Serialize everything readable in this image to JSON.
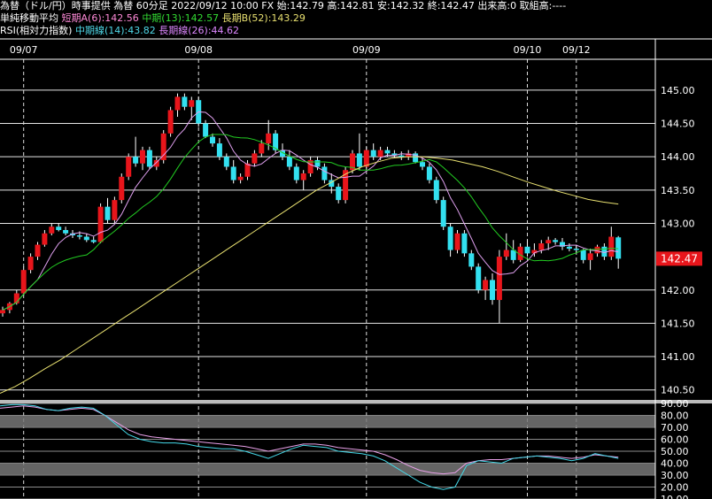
{
  "header": {
    "line1": "為替（ドル/円）時事提供 為替 60分足 2022/09/12 10:00 FX 始:142.79 高:142.81 安:142.32 終:142.47 出来高:0 取組高:----",
    "ma_title": "単純移動平均",
    "ma_short": "短期A(6):142.56",
    "ma_mid": "中期(13):142.57",
    "ma_long": "長期B(52):143.29",
    "rsi_title": "RSI(相対力指数)",
    "rsi_mid": "中期線(14):43.82",
    "rsi_long": "長期線(26):44.62"
  },
  "colors": {
    "up": "#e8151b",
    "down": "#33e0f0",
    "ma_short": "#e0a0f0",
    "ma_mid": "#22cc22",
    "ma_long": "#e8e070",
    "rsi_mid": "#44d8e8",
    "rsi_long": "#e8a0e8",
    "price_tag": "#e8151b"
  },
  "chart_data": {
    "type": "candlestick",
    "dates": [
      "09/07",
      "09/08",
      "09/09",
      "09/10",
      "09/12"
    ],
    "date_index": [
      3,
      28,
      52,
      75,
      82
    ],
    "price_ticks": [
      145.0,
      144.5,
      144.0,
      143.5,
      143.0,
      142.0,
      141.5,
      141.0,
      140.5
    ],
    "price_ylim": [
      140.35,
      145.45
    ],
    "last_price": "142.47",
    "rsi_ticks": [
      "90.00",
      "80.00",
      "70.00",
      "60.00",
      "50.00",
      "40.00",
      "30.00",
      "20.00",
      "10.00"
    ],
    "rsi_ylim": [
      10,
      90
    ],
    "rsi_bands": [
      [
        70,
        80
      ],
      [
        30,
        40
      ]
    ],
    "candles": [
      [
        141.65,
        141.75,
        141.6,
        141.7
      ],
      [
        141.7,
        141.82,
        141.65,
        141.8
      ],
      [
        141.8,
        142.0,
        141.78,
        141.95
      ],
      [
        141.95,
        142.35,
        141.92,
        142.3
      ],
      [
        142.3,
        142.55,
        142.25,
        142.5
      ],
      [
        142.5,
        142.72,
        142.45,
        142.68
      ],
      [
        142.68,
        142.9,
        142.65,
        142.85
      ],
      [
        142.85,
        143.0,
        142.82,
        142.95
      ],
      [
        142.95,
        143.0,
        142.88,
        142.9
      ],
      [
        142.9,
        142.95,
        142.82,
        142.85
      ],
      [
        142.85,
        142.9,
        142.78,
        142.82
      ],
      [
        142.82,
        142.88,
        142.76,
        142.8
      ],
      [
        142.8,
        142.84,
        142.72,
        142.75
      ],
      [
        142.75,
        142.8,
        142.7,
        142.72
      ],
      [
        142.72,
        143.3,
        142.7,
        143.25
      ],
      [
        143.25,
        143.38,
        143.0,
        143.05
      ],
      [
        143.05,
        143.4,
        143.0,
        143.35
      ],
      [
        143.35,
        143.75,
        143.3,
        143.7
      ],
      [
        143.7,
        144.05,
        143.65,
        144.0
      ],
      [
        144.0,
        144.3,
        143.85,
        143.9
      ],
      [
        143.9,
        144.15,
        143.8,
        144.1
      ],
      [
        144.1,
        144.15,
        143.82,
        143.85
      ],
      [
        143.85,
        144.0,
        143.8,
        143.95
      ],
      [
        143.95,
        144.4,
        143.9,
        144.35
      ],
      [
        144.35,
        144.75,
        144.3,
        144.7
      ],
      [
        144.7,
        144.95,
        144.6,
        144.9
      ],
      [
        144.9,
        144.95,
        144.7,
        144.75
      ],
      [
        144.75,
        144.9,
        144.55,
        144.85
      ],
      [
        144.85,
        144.9,
        144.45,
        144.5
      ],
      [
        144.5,
        144.55,
        144.28,
        144.3
      ],
      [
        144.3,
        144.35,
        144.15,
        144.2
      ],
      [
        144.2,
        144.28,
        143.95,
        144.0
      ],
      [
        144.0,
        144.05,
        143.8,
        143.85
      ],
      [
        143.85,
        143.95,
        143.6,
        143.65
      ],
      [
        143.65,
        143.75,
        143.6,
        143.7
      ],
      [
        143.7,
        143.95,
        143.65,
        143.9
      ],
      [
        143.9,
        144.1,
        143.85,
        144.05
      ],
      [
        144.05,
        144.25,
        144.0,
        144.2
      ],
      [
        144.2,
        144.55,
        144.1,
        144.35
      ],
      [
        144.35,
        144.4,
        144.05,
        144.1
      ],
      [
        144.1,
        144.2,
        143.95,
        144.0
      ],
      [
        144.0,
        144.1,
        143.8,
        143.85
      ],
      [
        143.85,
        143.9,
        143.6,
        143.65
      ],
      [
        143.65,
        143.8,
        143.5,
        143.75
      ],
      [
        143.75,
        144.0,
        143.7,
        143.95
      ],
      [
        143.95,
        144.0,
        143.8,
        143.85
      ],
      [
        143.85,
        143.9,
        143.6,
        143.65
      ],
      [
        143.65,
        143.75,
        143.45,
        143.55
      ],
      [
        143.55,
        143.6,
        143.3,
        143.35
      ],
      [
        143.35,
        143.85,
        143.3,
        143.8
      ],
      [
        143.8,
        144.1,
        143.75,
        144.05
      ],
      [
        144.05,
        144.35,
        143.8,
        143.85
      ],
      [
        143.85,
        144.15,
        143.8,
        144.1
      ],
      [
        144.1,
        144.2,
        143.95,
        144.0
      ],
      [
        144.0,
        144.15,
        143.95,
        144.1
      ],
      [
        144.1,
        144.15,
        144.0,
        144.05
      ],
      [
        144.05,
        144.1,
        143.98,
        144.02
      ],
      [
        144.02,
        144.08,
        143.95,
        144.0
      ],
      [
        144.0,
        144.1,
        143.95,
        144.05
      ],
      [
        144.05,
        144.08,
        143.9,
        143.92
      ],
      [
        143.92,
        143.98,
        143.8,
        143.85
      ],
      [
        143.85,
        143.9,
        143.6,
        143.65
      ],
      [
        143.65,
        143.7,
        143.3,
        143.35
      ],
      [
        143.35,
        143.4,
        142.9,
        142.95
      ],
      [
        142.95,
        143.0,
        142.5,
        142.6
      ],
      [
        142.6,
        142.9,
        142.55,
        142.85
      ],
      [
        142.85,
        142.9,
        142.5,
        142.55
      ],
      [
        142.55,
        142.6,
        142.3,
        142.35
      ],
      [
        142.35,
        142.4,
        141.95,
        142.0
      ],
      [
        142.0,
        142.2,
        141.85,
        142.15
      ],
      [
        142.15,
        142.25,
        141.78,
        141.85
      ],
      [
        141.85,
        142.6,
        141.5,
        142.5
      ],
      [
        142.5,
        142.85,
        142.45,
        142.6
      ],
      [
        142.6,
        142.75,
        142.4,
        142.45
      ],
      [
        142.45,
        142.7,
        142.42,
        142.65
      ],
      [
        142.65,
        142.75,
        142.5,
        142.55
      ],
      [
        142.55,
        142.7,
        142.5,
        142.6
      ],
      [
        142.6,
        142.75,
        142.55,
        142.7
      ],
      [
        142.7,
        142.8,
        142.6,
        142.75
      ],
      [
        142.75,
        142.78,
        142.68,
        142.72
      ],
      [
        142.72,
        142.78,
        142.6,
        142.65
      ],
      [
        142.65,
        142.7,
        142.58,
        142.62
      ],
      [
        142.62,
        142.68,
        142.55,
        142.6
      ],
      [
        142.6,
        142.62,
        142.4,
        142.45
      ],
      [
        142.45,
        142.62,
        142.3,
        142.55
      ],
      [
        142.55,
        142.68,
        142.5,
        142.65
      ],
      [
        142.65,
        142.7,
        142.45,
        142.5
      ],
      [
        142.5,
        142.95,
        142.45,
        142.8
      ],
      [
        142.79,
        142.81,
        142.32,
        142.47
      ]
    ],
    "ma_long_values": [
      140.45,
      140.55,
      140.68,
      140.82,
      140.95,
      141.1,
      141.25,
      141.4,
      141.55,
      141.7,
      141.85,
      142.0,
      142.15,
      142.3,
      142.45,
      142.6,
      142.75,
      142.9,
      143.05,
      143.2,
      143.35,
      143.5,
      143.62,
      143.75,
      143.85,
      143.92,
      143.98,
      144.0,
      144.0,
      143.98,
      143.95,
      143.9,
      143.85,
      143.78,
      143.7,
      143.62,
      143.55,
      143.48,
      143.42,
      143.36,
      143.32,
      143.29
    ],
    "rsi_mid_values": [
      88,
      89,
      89,
      88,
      85,
      84,
      86,
      87,
      86,
      80,
      72,
      64,
      60,
      58,
      57,
      57,
      56,
      54,
      53,
      52,
      52,
      50,
      47,
      44,
      48,
      52,
      55,
      54,
      53,
      50,
      49,
      48,
      46,
      42,
      36,
      30,
      24,
      20,
      18,
      20,
      38,
      42,
      41,
      40,
      44,
      45,
      46,
      45,
      44,
      42,
      44,
      48,
      46,
      44
    ],
    "rsi_long_values": [
      86,
      87,
      88,
      87,
      85,
      84,
      85,
      86,
      85,
      80,
      74,
      68,
      64,
      62,
      61,
      60,
      59,
      58,
      57,
      56,
      55,
      54,
      52,
      50,
      52,
      54,
      56,
      56,
      55,
      53,
      52,
      51,
      50,
      47,
      43,
      38,
      34,
      32,
      31,
      32,
      40,
      42,
      43,
      43,
      44,
      45,
      46,
      46,
      45,
      44,
      45,
      47,
      46,
      45
    ]
  }
}
